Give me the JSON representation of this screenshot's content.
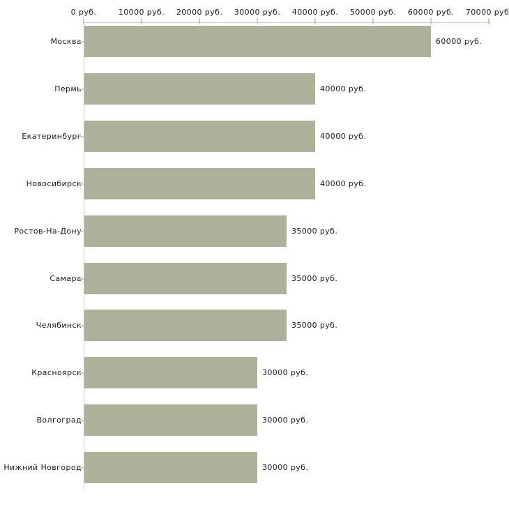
{
  "chart_data": {
    "type": "bar",
    "orientation": "horizontal",
    "title": "",
    "xlabel": "",
    "ylabel": "",
    "categories": [
      "Москва",
      "Пермь",
      "Екатеринбург",
      "Новосибирск",
      "Ростов-На-Дону",
      "Самара",
      "Челябинск",
      "Красноярск",
      "Волгоград",
      "Нижний Новгород"
    ],
    "values": [
      60000,
      40000,
      40000,
      40000,
      35000,
      35000,
      35000,
      30000,
      30000,
      30000
    ],
    "value_labels": [
      "60000 руб.",
      "40000 руб.",
      "40000 руб.",
      "40000 руб.",
      "35000 руб.",
      "35000 руб.",
      "35000 руб.",
      "30000 руб.",
      "30000 руб.",
      "30000 руб."
    ],
    "x_tick_values": [
      0,
      10000,
      20000,
      30000,
      40000,
      50000,
      60000,
      70000
    ],
    "x_tick_labels": [
      "0 руб.",
      "10000 руб.",
      "20000 руб.",
      "30000 руб.",
      "40000 руб.",
      "50000 руб.",
      "60000 руб.",
      "70000 руб."
    ],
    "xlim": [
      0,
      70000
    ],
    "grid": false,
    "legend": false,
    "colors": {
      "bar_fill": "#acb199",
      "axis_line": "#c9c9c9",
      "tick_mark": "#d0d0a0",
      "text": "#1a1a1a",
      "background": "#ffffff"
    }
  }
}
